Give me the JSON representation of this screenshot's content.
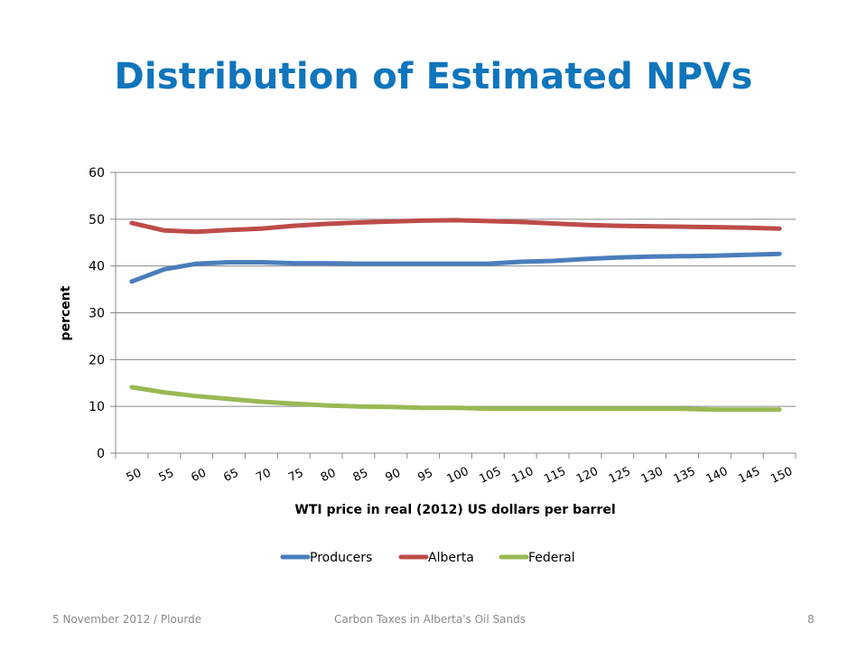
{
  "slide": {
    "title": "Distribution of Estimated NPVs",
    "footer_left": "5 November 2012 / Plourde",
    "footer_center": "Carbon Taxes in Alberta's Oil Sands",
    "page_number": "8"
  },
  "chart_data": {
    "type": "line",
    "xlabel": "WTI price in real (2012) US dollars per barrel",
    "ylabel": "percent",
    "categories": [
      50,
      55,
      60,
      65,
      70,
      75,
      80,
      85,
      90,
      95,
      100,
      105,
      110,
      115,
      120,
      125,
      130,
      135,
      140,
      145,
      150
    ],
    "ylim": [
      0,
      60
    ],
    "yticks": [
      0,
      10,
      20,
      30,
      40,
      50,
      60
    ],
    "grid": "horizontal",
    "legend_position": "bottom",
    "series": [
      {
        "name": "Producers",
        "color": "#4A7EBB",
        "values": [
          36.7,
          39.3,
          40.5,
          40.8,
          40.8,
          40.6,
          40.6,
          40.5,
          40.5,
          40.5,
          40.5,
          40.5,
          40.9,
          41.1,
          41.5,
          41.8,
          42.0,
          42.1,
          42.2,
          42.4,
          42.6
        ]
      },
      {
        "name": "Alberta",
        "color": "#BE4B48",
        "values": [
          49.2,
          47.6,
          47.3,
          47.7,
          48.0,
          48.6,
          49.0,
          49.3,
          49.5,
          49.7,
          49.8,
          49.6,
          49.4,
          49.1,
          48.8,
          48.6,
          48.5,
          48.4,
          48.3,
          48.2,
          48.0
        ]
      },
      {
        "name": "Federal",
        "color": "#98B954",
        "values": [
          14.1,
          13.0,
          12.2,
          11.6,
          11.0,
          10.6,
          10.2,
          10.0,
          9.9,
          9.7,
          9.7,
          9.5,
          9.5,
          9.5,
          9.5,
          9.5,
          9.5,
          9.5,
          9.3,
          9.3,
          9.3
        ]
      }
    ]
  }
}
